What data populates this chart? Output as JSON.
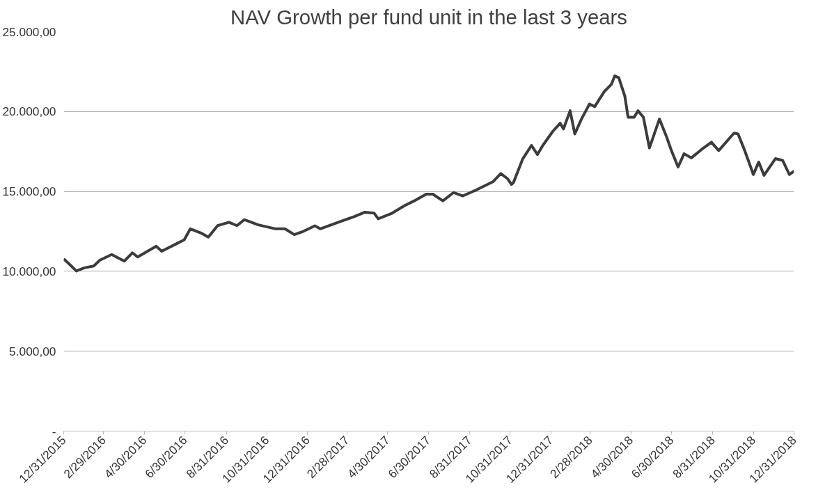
{
  "chart_data": {
    "type": "line",
    "title": "NAV Growth per fund unit in the last 3 years",
    "x": [
      "2015-12-31",
      "2016-01-09",
      "2016-01-19",
      "2016-01-31",
      "2016-02-14",
      "2016-02-23",
      "2016-03-12",
      "2016-03-31",
      "2016-04-12",
      "2016-04-20",
      "2016-05-18",
      "2016-05-26",
      "2016-06-17",
      "2016-06-29",
      "2016-07-08",
      "2016-07-24",
      "2016-08-04",
      "2016-08-18",
      "2016-09-04",
      "2016-09-16",
      "2016-09-27",
      "2016-10-18",
      "2016-11-13",
      "2016-11-27",
      "2016-12-11",
      "2016-12-25",
      "2017-01-11",
      "2017-01-19",
      "2017-02-18",
      "2017-03-12",
      "2017-03-27",
      "2017-04-10",
      "2017-04-16",
      "2017-05-07",
      "2017-05-25",
      "2017-06-09",
      "2017-06-27",
      "2017-07-07",
      "2017-07-22",
      "2017-08-07",
      "2017-08-21",
      "2017-09-10",
      "2017-10-05",
      "2017-10-17",
      "2017-10-27",
      "2017-11-02",
      "2017-11-05",
      "2017-11-19",
      "2017-12-02",
      "2017-12-11",
      "2017-12-19",
      "2018-01-03",
      "2018-01-14",
      "2018-01-19",
      "2018-01-29",
      "2018-02-05",
      "2018-02-15",
      "2018-02-27",
      "2018-03-07",
      "2018-03-21",
      "2018-04-01",
      "2018-04-06",
      "2018-04-12",
      "2018-04-21",
      "2018-04-26",
      "2018-05-05",
      "2018-05-11",
      "2018-05-19",
      "2018-05-28",
      "2018-06-12",
      "2018-06-23",
      "2018-06-30",
      "2018-07-10",
      "2018-07-19",
      "2018-07-30",
      "2018-08-14",
      "2018-08-29",
      "2018-09-09",
      "2018-10-02",
      "2018-10-08",
      "2018-10-18",
      "2018-10-31",
      "2018-11-08",
      "2018-11-16",
      "2018-12-03",
      "2018-12-14",
      "2018-12-24",
      "2018-12-31"
    ],
    "series": [
      {
        "color": "#3c3c3c",
        "values": [
          10780,
          10430,
          10020,
          10220,
          10330,
          10690,
          11050,
          10640,
          11160,
          10900,
          11570,
          11260,
          11720,
          11980,
          12660,
          12400,
          12140,
          12860,
          13070,
          12860,
          13230,
          12910,
          12660,
          12660,
          12300,
          12510,
          12850,
          12660,
          13120,
          13440,
          13700,
          13640,
          13290,
          13640,
          14100,
          14410,
          14830,
          14830,
          14410,
          14930,
          14720,
          15090,
          15600,
          16120,
          15800,
          15440,
          15560,
          17050,
          17880,
          17310,
          17880,
          18760,
          19270,
          18910,
          20050,
          18600,
          19530,
          20470,
          20310,
          21240,
          21710,
          22230,
          22120,
          20980,
          19640,
          19640,
          20050,
          19640,
          17720,
          19530,
          18390,
          17560,
          16530,
          17360,
          17100,
          17620,
          18080,
          17560,
          18650,
          18600,
          17560,
          16060,
          16840,
          16010,
          17050,
          16940,
          16060,
          16270
        ]
      }
    ],
    "xlim": [
      "2015-12-31",
      "2018-12-31"
    ],
    "xticks": [
      {
        "value": "2015-12-31",
        "label": "12/31/2015"
      },
      {
        "value": "2016-02-29",
        "label": "2/29/2016"
      },
      {
        "value": "2016-04-30",
        "label": "4/30/2016"
      },
      {
        "value": "2016-06-30",
        "label": "6/30/2016"
      },
      {
        "value": "2016-08-31",
        "label": "8/31/2016"
      },
      {
        "value": "2016-10-31",
        "label": "10/31/2016"
      },
      {
        "value": "2016-12-31",
        "label": "12/31/2016"
      },
      {
        "value": "2017-02-28",
        "label": "2/28/2017"
      },
      {
        "value": "2017-04-30",
        "label": "4/30/2017"
      },
      {
        "value": "2017-06-30",
        "label": "6/30/2017"
      },
      {
        "value": "2017-08-31",
        "label": "8/31/2017"
      },
      {
        "value": "2017-10-31",
        "label": "10/31/2017"
      },
      {
        "value": "2017-12-31",
        "label": "12/31/2017"
      },
      {
        "value": "2018-02-28",
        "label": "2/28/2018"
      },
      {
        "value": "2018-04-30",
        "label": "4/30/2018"
      },
      {
        "value": "2018-06-30",
        "label": "6/30/2018"
      },
      {
        "value": "2018-08-31",
        "label": "8/31/2018"
      },
      {
        "value": "2018-10-31",
        "label": "10/31/2018"
      },
      {
        "value": "2018-12-31",
        "label": "12/31/2018"
      }
    ],
    "ylim": [
      0,
      25000
    ],
    "yticks": [
      {
        "value": 0,
        "label": "-"
      },
      {
        "value": 5000,
        "label": "5.000,00"
      },
      {
        "value": 10000,
        "label": "10.000,00"
      },
      {
        "value": 15000,
        "label": "15.000,00"
      },
      {
        "value": 20000,
        "label": "20.000,00"
      },
      {
        "value": 25000,
        "label": "25.000,00"
      }
    ],
    "grid": "y",
    "line_style": "solid"
  }
}
